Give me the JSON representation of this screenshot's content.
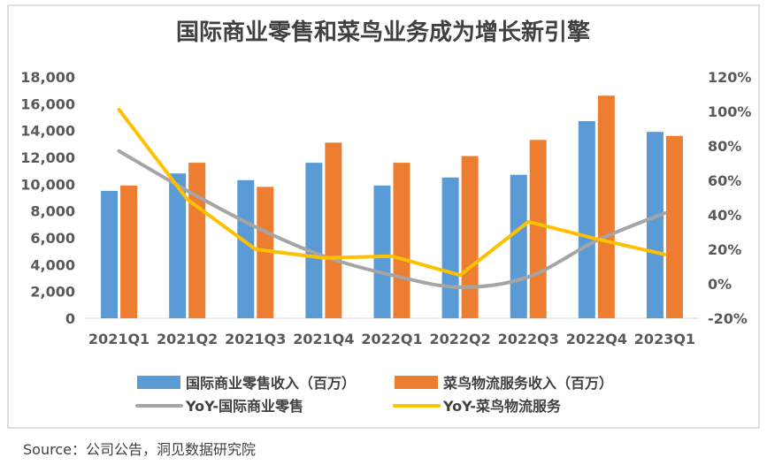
{
  "colors": {
    "retail": "#5B9BD5",
    "cainiao": "#ED7D31",
    "yoy_retail": "#A5A5A5",
    "yoy_cainiao": "#FFC000",
    "frame": "#BFBFBF",
    "axis": "#D9D9D9"
  },
  "source": "Source：公司公告，洞见数据研究院",
  "chart_data": {
    "type": "bar",
    "title": "国际商业零售和菜鸟业务成为增长新引擎",
    "categories": [
      "2021Q1",
      "2021Q2",
      "2021Q3",
      "2021Q4",
      "2022Q1",
      "2022Q2",
      "2022Q3",
      "2022Q4",
      "2023Q1"
    ],
    "series": [
      {
        "name": "国际商业零售收入（百万）",
        "kind": "bar",
        "axis": "left",
        "color_key": "retail",
        "values": [
          9500,
          10800,
          10300,
          11600,
          9900,
          10500,
          10700,
          14700,
          13900
        ]
      },
      {
        "name": "菜鸟物流服务收入（百万）",
        "kind": "bar",
        "axis": "left",
        "color_key": "cainiao",
        "values": [
          9900,
          11600,
          9800,
          13100,
          11600,
          12100,
          13300,
          16600,
          13600
        ]
      },
      {
        "name": "YoY-国际商业零售",
        "kind": "line",
        "axis": "right",
        "color_key": "yoy_retail",
        "unit": "%",
        "values": [
          77,
          54,
          33,
          16,
          5,
          -2,
          4,
          25,
          41
        ]
      },
      {
        "name": "YoY-菜鸟物流服务",
        "kind": "line",
        "axis": "right",
        "color_key": "yoy_cainiao",
        "unit": "%",
        "values": [
          101,
          49,
          20,
          15,
          16,
          5,
          36,
          26,
          17
        ]
      }
    ],
    "y_left": {
      "min": 0,
      "max": 18000,
      "step": 2000,
      "ticks": [
        "0",
        "2,000",
        "4,000",
        "6,000",
        "8,000",
        "10,000",
        "12,000",
        "14,000",
        "16,000",
        "18,000"
      ]
    },
    "y_right": {
      "min": -20,
      "max": 120,
      "step": 20,
      "ticks": [
        "-20%",
        "0%",
        "20%",
        "40%",
        "60%",
        "80%",
        "100%",
        "120%"
      ]
    },
    "legend_position": "bottom",
    "grid": false
  }
}
